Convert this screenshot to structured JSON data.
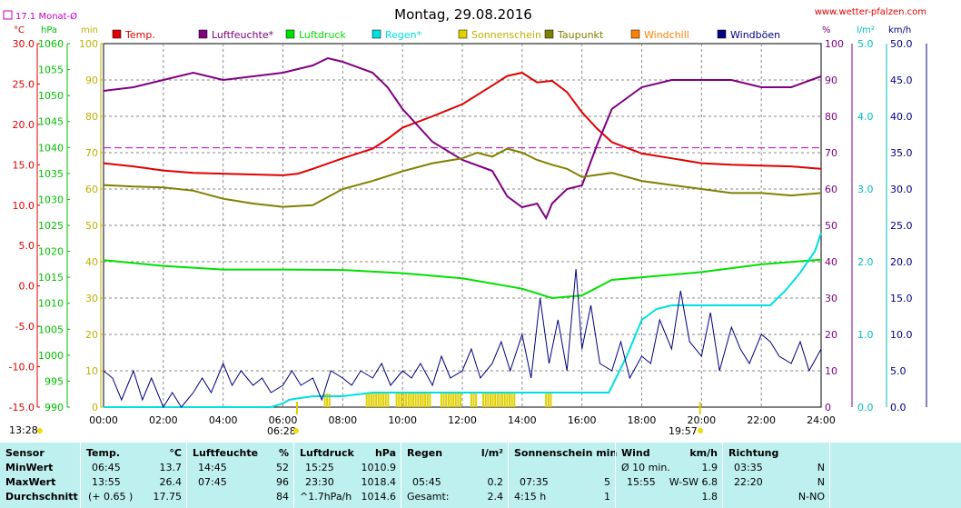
{
  "title": "Montag, 29.08.2016",
  "site": "www.wetter-pfalzen.com",
  "monthly_avg_label": "17.1 Monat-Ø",
  "axis_units": {
    "temp": "°C",
    "pressure": "hPa",
    "sun": "min",
    "humidity": "%",
    "rain": "l/m²",
    "wind": "km/h"
  },
  "sunrise": "06:28",
  "sunset": "19:57",
  "daylight_start": "13:28",
  "chart_data": {
    "type": "line",
    "x_ticks": [
      "00:00",
      "02:00",
      "04:00",
      "06:00",
      "08:00",
      "10:00",
      "12:00",
      "14:00",
      "16:00",
      "18:00",
      "20:00",
      "22:00",
      "24:00"
    ],
    "axes": {
      "temp": {
        "min": -15,
        "max": 30,
        "ticks": [
          "30.0",
          "25.0",
          "20.0",
          "15.0",
          "10.0",
          "5.0",
          "0.0",
          "-5.0",
          "-10.0",
          "-15.0"
        ]
      },
      "pressure": {
        "min": 990,
        "max": 1060,
        "ticks": [
          "1060",
          "1055",
          "1050",
          "1045",
          "1040",
          "1035",
          "1030",
          "1025",
          "1020",
          "1015",
          "1010",
          "1005",
          "1000",
          "995",
          "990"
        ]
      },
      "sun": {
        "min": 0,
        "max": 100,
        "ticks": [
          "100",
          "90",
          "80",
          "70",
          "60",
          "50",
          "40",
          "30",
          "20",
          "10",
          "0"
        ]
      },
      "humidity": {
        "min": 0,
        "max": 100,
        "ticks": [
          "100",
          "90",
          "80",
          "70",
          "60",
          "50",
          "40",
          "30",
          "20",
          "10",
          "0"
        ]
      },
      "rain": {
        "min": 0,
        "max": 5,
        "ticks": [
          "5.0",
          "4.0",
          "3.0",
          "2.0",
          "1.0",
          "0.0"
        ]
      },
      "wind": {
        "min": 0,
        "max": 50,
        "ticks": [
          "50.0",
          "45.0",
          "40.0",
          "35.0",
          "30.0",
          "25.0",
          "20.0",
          "15.0",
          "10.0",
          "5.0",
          "0.0"
        ]
      }
    },
    "legend": [
      {
        "name": "Temp.",
        "color": "#e00000"
      },
      {
        "name": "Luftfeuchte*",
        "color": "#800080"
      },
      {
        "name": "Luftdruck",
        "color": "#00e000"
      },
      {
        "name": "Regen*",
        "color": "#00e0e0"
      },
      {
        "name": "Sonnenschein",
        "color": "#e0d000"
      },
      {
        "name": "Taupunkt",
        "color": "#808000"
      },
      {
        "name": "Windchill",
        "color": "#ff8000"
      },
      {
        "name": "Windböen",
        "color": "#000080"
      }
    ],
    "monthly_avg_temp": 17.1,
    "series": [
      {
        "name": "Temp.",
        "axis": "temp",
        "color": "#e00000",
        "x": [
          0,
          1,
          2,
          3,
          4,
          5,
          6,
          6.5,
          7,
          8,
          9,
          9.5,
          10,
          11,
          12,
          13,
          13.5,
          14,
          14.5,
          15,
          15.5,
          16,
          16.5,
          17,
          18,
          19,
          20,
          21,
          22,
          23,
          24
        ],
        "y": [
          15.2,
          14.8,
          14.3,
          14.0,
          13.9,
          13.8,
          13.7,
          13.9,
          14.5,
          15.8,
          17.0,
          18.2,
          19.6,
          21.0,
          22.5,
          24.8,
          26.0,
          26.4,
          25.2,
          25.4,
          24.0,
          21.5,
          19.5,
          17.8,
          16.4,
          15.8,
          15.2,
          15.0,
          14.9,
          14.8,
          14.5
        ]
      },
      {
        "name": "Luftfeuchte*",
        "axis": "humidity",
        "color": "#800080",
        "x": [
          0,
          1,
          2,
          3,
          4,
          5,
          6,
          7,
          7.5,
          8,
          9,
          9.5,
          10,
          11,
          12,
          13,
          13.5,
          14,
          14.5,
          14.8,
          15,
          15.5,
          16,
          16.5,
          17,
          18,
          19,
          20,
          21,
          22,
          23,
          24
        ],
        "y": [
          87,
          88,
          90,
          92,
          90,
          91,
          92,
          94,
          96,
          95,
          92,
          88,
          82,
          73,
          68,
          65,
          58,
          55,
          56,
          52,
          56,
          60,
          61,
          72,
          82,
          88,
          90,
          90,
          90,
          88,
          88,
          91
        ]
      },
      {
        "name": "Luftdruck",
        "axis": "pressure",
        "color": "#00e000",
        "x": [
          0,
          2,
          4,
          6,
          8,
          10,
          12,
          14,
          15,
          16,
          17,
          18,
          20,
          22,
          24
        ],
        "y": [
          1018.3,
          1017.2,
          1016.5,
          1016.5,
          1016.4,
          1015.8,
          1014.8,
          1012.8,
          1011.0,
          1011.5,
          1014.5,
          1015.0,
          1016.0,
          1017.5,
          1018.4
        ]
      },
      {
        "name": "Regen*",
        "axis": "rain",
        "color": "#00e0e0",
        "x": [
          0,
          5.6,
          6.0,
          6.2,
          6.5,
          7,
          8,
          9,
          10,
          12,
          14,
          16,
          16.9,
          17.5,
          18,
          18.5,
          19,
          20,
          21,
          22,
          22.3,
          22.8,
          23.3,
          23.8,
          24
        ],
        "y": [
          0,
          0,
          0.05,
          0.1,
          0.12,
          0.15,
          0.15,
          0.2,
          0.2,
          0.2,
          0.2,
          0.2,
          0.2,
          0.7,
          1.2,
          1.35,
          1.4,
          1.4,
          1.4,
          1.4,
          1.4,
          1.6,
          1.85,
          2.15,
          2.4
        ]
      },
      {
        "name": "Taupunkt",
        "axis": "temp",
        "color": "#808000",
        "x": [
          0,
          1,
          2,
          3,
          4,
          5,
          6,
          7,
          8,
          9,
          10,
          11,
          12,
          12.5,
          13,
          13.5,
          14,
          14.5,
          15,
          15.5,
          16,
          17,
          18,
          19,
          20,
          21,
          22,
          23,
          24
        ],
        "y": [
          12.5,
          12.3,
          12.2,
          11.8,
          10.8,
          10.2,
          9.8,
          10.0,
          12.0,
          13.0,
          14.2,
          15.2,
          15.8,
          16.5,
          16.0,
          17.0,
          16.5,
          15.6,
          15.0,
          14.5,
          13.5,
          14.0,
          13.0,
          12.5,
          12.0,
          11.5,
          11.5,
          11.2,
          11.5
        ]
      },
      {
        "name": "Windböen",
        "axis": "wind",
        "color": "#000080",
        "x": [
          0,
          0.3,
          0.6,
          1,
          1.3,
          1.6,
          2,
          2.3,
          2.6,
          3,
          3.3,
          3.6,
          4,
          4.3,
          4.6,
          5,
          5.3,
          5.6,
          6,
          6.3,
          6.6,
          7,
          7.3,
          7.6,
          8,
          8.3,
          8.6,
          9,
          9.3,
          9.6,
          10,
          10.3,
          10.6,
          11,
          11.3,
          11.6,
          12,
          12.3,
          12.6,
          13,
          13.3,
          13.6,
          14,
          14.3,
          14.6,
          14.9,
          15.2,
          15.5,
          15.8,
          16.0,
          16.3,
          16.6,
          17,
          17.3,
          17.6,
          18,
          18.3,
          18.6,
          19,
          19.3,
          19.6,
          20,
          20.3,
          20.6,
          21,
          21.3,
          21.6,
          22,
          22.3,
          22.6,
          23,
          23.3,
          23.6,
          24
        ],
        "y": [
          5,
          4,
          1,
          5,
          1,
          4,
          0,
          2,
          0,
          2,
          4,
          2,
          6,
          3,
          5,
          3,
          4,
          2,
          3,
          5,
          3,
          4,
          1,
          5,
          4,
          3,
          5,
          4,
          6,
          3,
          5,
          4,
          6,
          3,
          7,
          4,
          5,
          8,
          4,
          6,
          9,
          5,
          10,
          4,
          15,
          6,
          12,
          5,
          19,
          8,
          14,
          6,
          5,
          9,
          4,
          7,
          6,
          12,
          8,
          16,
          9,
          7,
          13,
          5,
          11,
          8,
          6,
          10,
          9,
          7,
          6,
          9,
          5,
          8
        ]
      }
    ],
    "sunshine": {
      "name": "Sonnenschein",
      "axis": "sun",
      "color": "#e0d000",
      "intervals": [
        [
          7.4,
          7.6
        ],
        [
          8.8,
          9.6
        ],
        [
          9.8,
          11.0
        ],
        [
          11.3,
          12.0
        ],
        [
          12.3,
          12.5
        ],
        [
          12.7,
          13.8
        ],
        [
          14.8,
          15.0
        ]
      ]
    }
  },
  "table": {
    "headers": {
      "sensor": "Sensor",
      "temp": "Temp.",
      "temp_unit": "°C",
      "hum": "Luftfeuchte",
      "hum_unit": "%",
      "press": "Luftdruck",
      "press_unit": "hPa",
      "rain": "Regen",
      "rain_unit": "l/m²",
      "sun": "Sonnenschein min",
      "wind": "Wind",
      "wind_unit": "km/h",
      "dir": "Richtung"
    },
    "rows": [
      {
        "label": "MinWert",
        "temp_time": "06:45",
        "temp_val": "13.7",
        "hum_time": "14:45",
        "hum_val": "52",
        "press_time": "15:25",
        "press_val": "1010.9",
        "rain_time": "",
        "rain_val": "",
        "sun_time": "",
        "sun_val": "",
        "wind_time": "Ø 10 min.",
        "wind_val": "1.9",
        "dir_time": "03:35",
        "dir_val": "N"
      },
      {
        "label": "MaxWert",
        "temp_time": "13:55",
        "temp_val": "26.4",
        "hum_time": "07:45",
        "hum_val": "96",
        "press_time": "23:30",
        "press_val": "1018.4",
        "rain_time": "05:45",
        "rain_val": "0.2",
        "sun_time": "07:35",
        "sun_val": "5",
        "wind_time": "15:55",
        "wind_val": "W-SW 6.8",
        "dir_time": "22:20",
        "dir_val": "N"
      },
      {
        "label": "Durchschnitt",
        "temp_time": "(+ 0.65 )",
        "temp_val": "17.75",
        "hum_time": "",
        "hum_val": "84",
        "press_time": "^1.7hPa/h",
        "press_val": "1014.6",
        "rain_time": "Gesamt:",
        "rain_val": "2.4",
        "sun_time": "4:15 h",
        "sun_val": "1",
        "wind_time": "",
        "wind_val": "1.8",
        "dir_time": "",
        "dir_val": "N-NO"
      }
    ]
  }
}
